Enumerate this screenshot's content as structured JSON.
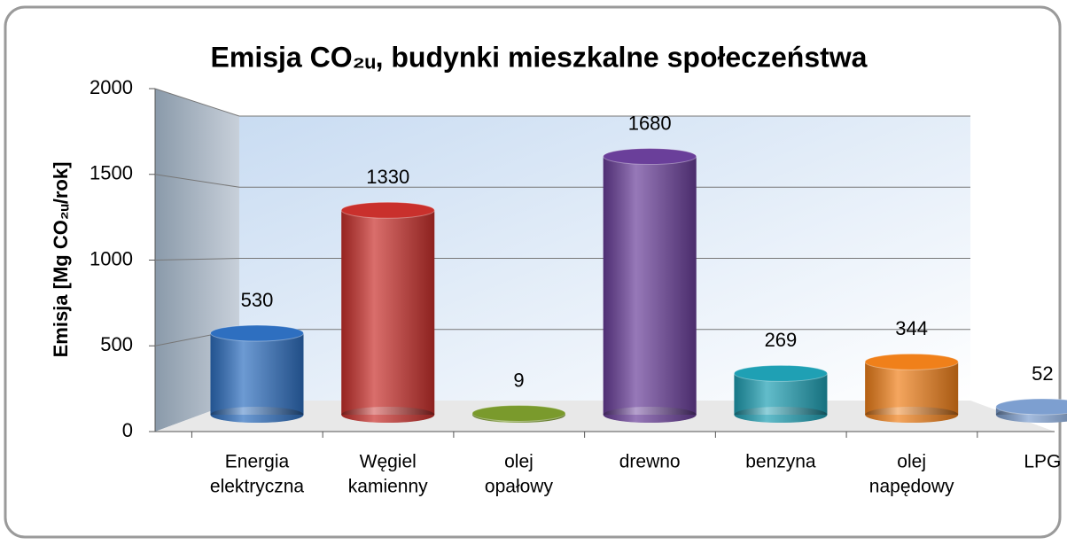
{
  "chart_data": {
    "type": "bar",
    "title": "Emisja CO₂ᵤ, budynki mieszkalne społeczeństwa",
    "y_label": "Emisja [Mg CO₂ᵤ/rok]",
    "categories": [
      [
        "Energia",
        "elektryczna"
      ],
      [
        "Węgiel",
        "kamienny"
      ],
      [
        "olej",
        "opałowy"
      ],
      [
        "drewno"
      ],
      [
        "benzyna"
      ],
      [
        "olej",
        "napędowy"
      ],
      [
        "LPG"
      ]
    ],
    "values": [
      530,
      1330,
      9,
      1680,
      269,
      344,
      52
    ],
    "colors": [
      "#2e6fc0",
      "#c9302c",
      "#7a9a2c",
      "#6a3f9a",
      "#1fa0b4",
      "#f0801a",
      "#7d9fd0"
    ],
    "ylim": [
      0,
      2000
    ],
    "yticks": [
      0,
      500,
      1000,
      1500,
      2000
    ],
    "grid": true
  }
}
